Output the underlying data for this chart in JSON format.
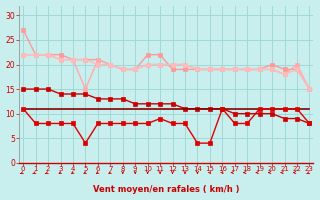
{
  "x": [
    0,
    1,
    2,
    3,
    4,
    5,
    6,
    7,
    8,
    9,
    10,
    11,
    12,
    13,
    14,
    15,
    16,
    17,
    18,
    19,
    20,
    21,
    22,
    23
  ],
  "line_pink1": [
    27,
    22,
    22,
    22,
    21,
    21,
    21,
    20,
    19,
    19,
    22,
    22,
    19,
    19,
    19,
    19,
    19,
    19,
    19,
    19,
    20,
    19,
    19,
    15
  ],
  "line_pink2": [
    22,
    22,
    22,
    21,
    21,
    15,
    21,
    20,
    19,
    19,
    20,
    20,
    20,
    20,
    19,
    19,
    19,
    19,
    19,
    19,
    19,
    18,
    20,
    15
  ],
  "line_pink3": [
    22,
    22,
    22,
    21,
    21,
    21,
    20,
    20,
    19,
    19,
    20,
    20,
    20,
    20,
    19,
    19,
    19,
    19,
    19,
    19,
    19,
    18,
    19,
    15
  ],
  "line_red_diag": [
    15,
    15,
    15,
    14,
    14,
    14,
    13,
    13,
    13,
    12,
    12,
    12,
    12,
    11,
    11,
    11,
    11,
    10,
    10,
    10,
    10,
    9,
    9,
    8
  ],
  "line_red_flat": [
    11,
    11,
    11,
    11,
    11,
    11,
    11,
    11,
    11,
    11,
    11,
    11,
    11,
    11,
    11,
    11,
    11,
    11,
    11,
    11,
    11,
    11,
    11,
    11
  ],
  "line_red_zigzag": [
    11,
    8,
    8,
    8,
    8,
    4,
    8,
    8,
    8,
    8,
    8,
    9,
    8,
    8,
    4,
    4,
    11,
    8,
    8,
    11,
    11,
    11,
    11,
    8
  ],
  "line_pink1_color": "#ff9999",
  "line_pink2_color": "#ffaaaa",
  "line_pink3_color": "#ffbbbb",
  "line_red_diag_color": "#cc0000",
  "line_red_flat_color": "#880000",
  "line_red_zigzag_color": "#dd0000",
  "bg_color": "#c8eeee",
  "grid_color": "#a0d8d8",
  "xlabel": "Vent moyen/en rafales ( km/h )",
  "ylim": [
    0,
    32
  ],
  "xlim": [
    -0.3,
    23.3
  ],
  "yticks": [
    0,
    5,
    10,
    15,
    20,
    25,
    30
  ],
  "xticks": [
    0,
    1,
    2,
    3,
    4,
    5,
    6,
    7,
    8,
    9,
    10,
    11,
    12,
    13,
    14,
    15,
    16,
    17,
    18,
    19,
    20,
    21,
    22,
    23
  ],
  "marker": "s",
  "markersize": 2.5,
  "linewidth": 1.0,
  "xlabel_color": "#cc0000",
  "tick_color": "#cc0000",
  "arrow_angles": [
    225,
    225,
    225,
    210,
    210,
    210,
    210,
    210,
    180,
    180,
    180,
    180,
    180,
    180,
    180,
    165,
    165,
    270,
    270,
    270,
    270,
    270,
    270,
    225
  ]
}
